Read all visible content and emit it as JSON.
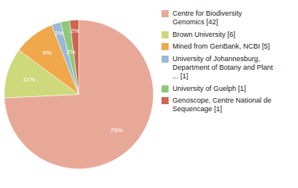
{
  "chart_data": {
    "type": "pie",
    "categories": [
      "Centre for Biodiversity\nGenomics [42]",
      "Brown University [6]",
      "Mined from GenBank, NCBI [5]",
      "University of Johannesburg,\nDepartment of Botany and Plant\n... [1]",
      "University of Guelph [1]",
      "Genoscope, Centre National de\nSequencage [1]"
    ],
    "values": [
      75,
      11,
      9,
      2,
      2,
      2
    ],
    "value_labels": [
      "75%",
      "11%",
      "9%",
      "2%",
      "2%",
      "2%"
    ],
    "colors": [
      "#e8a898",
      "#cdd97a",
      "#f0a84a",
      "#9ab8d8",
      "#8ec87a",
      "#cc6650"
    ],
    "data_labels": true,
    "legend": "right"
  }
}
